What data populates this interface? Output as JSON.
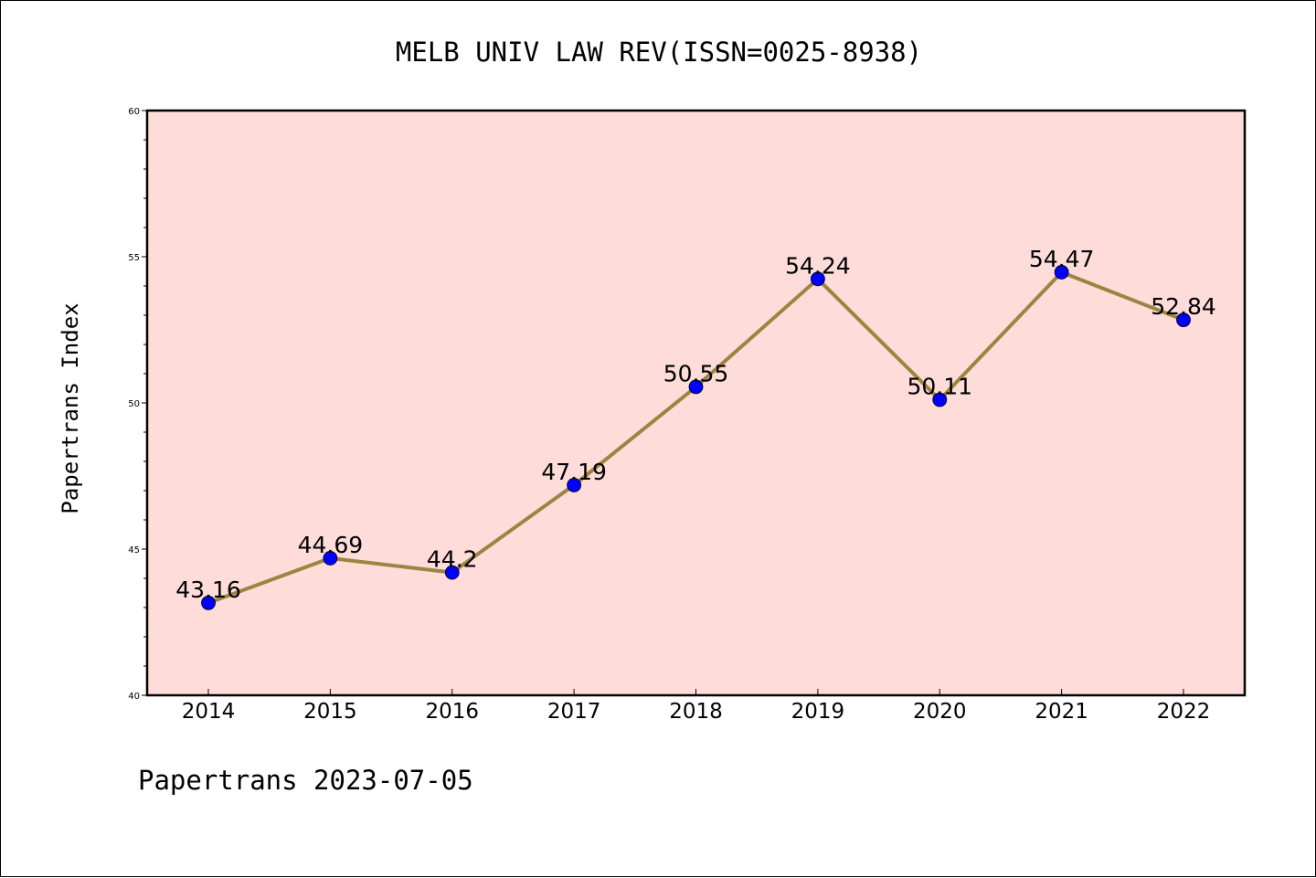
{
  "chart_data": {
    "type": "line",
    "title": "MELB UNIV LAW REV(ISSN=0025-8938)",
    "xlabel": "",
    "ylabel": "Papertrans Index",
    "categories": [
      "2014",
      "2015",
      "2016",
      "2017",
      "2018",
      "2019",
      "2020",
      "2021",
      "2022"
    ],
    "series": [
      {
        "values": [
          43.16,
          44.69,
          44.2,
          47.19,
          50.55,
          54.24,
          50.11,
          54.47,
          52.84
        ],
        "labels": [
          "43.16",
          "44.69",
          "44.2",
          "47.19",
          "50.55",
          "54.24",
          "50.11",
          "54.47",
          "52.84"
        ],
        "line_color": "#9b8540",
        "marker_color": "#0000ff"
      }
    ],
    "ylim": [
      40,
      60
    ],
    "yticks": [
      "40",
      "45",
      "50",
      "55",
      "60"
    ],
    "plot_background": "#fddcda",
    "grid": false,
    "legend": "none"
  },
  "footer": "Papertrans 2023-07-05"
}
